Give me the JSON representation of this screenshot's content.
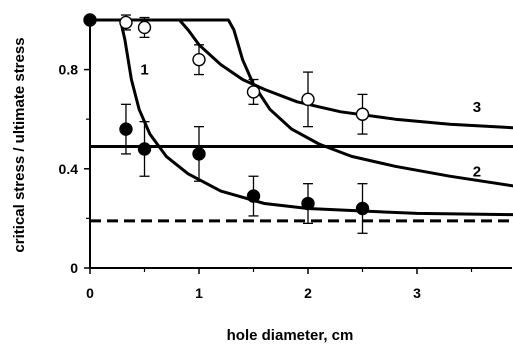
{
  "chart_data": {
    "type": "scatter",
    "xlabel": "hole diameter, cm",
    "ylabel": "critical stress / ultimate stress",
    "xlim": [
      0,
      3.9
    ],
    "ylim": [
      0,
      1.0
    ],
    "x_ticks": [
      "0",
      "1",
      "2",
      "3"
    ],
    "x_tick_values": [
      0,
      1,
      2,
      3
    ],
    "y_ticks": [
      "0",
      "0.4",
      "0.8"
    ],
    "y_tick_values": [
      0,
      0.4,
      0.8
    ],
    "grid": false,
    "series": [
      {
        "marker": "filled-circle",
        "points": [
          {
            "x": 0.0,
            "y": 1.0
          },
          {
            "x": 0.33,
            "y": 0.56,
            "err": 0.1
          },
          {
            "x": 0.5,
            "y": 0.48,
            "err": 0.11
          },
          {
            "x": 1.0,
            "y": 0.46,
            "err": 0.11
          },
          {
            "x": 1.5,
            "y": 0.29,
            "err": 0.08
          },
          {
            "x": 2.0,
            "y": 0.26,
            "err": 0.08
          },
          {
            "x": 2.5,
            "y": 0.24,
            "err": 0.1
          }
        ]
      },
      {
        "marker": "open-circle",
        "points": [
          {
            "x": 0.33,
            "y": 0.99,
            "err": 0.03
          },
          {
            "x": 0.5,
            "y": 0.97,
            "err": 0.04
          },
          {
            "x": 1.0,
            "y": 0.84,
            "err": 0.06
          },
          {
            "x": 1.5,
            "y": 0.71,
            "err": 0.05
          },
          {
            "x": 2.0,
            "y": 0.68,
            "err": 0.11
          },
          {
            "x": 2.5,
            "y": 0.62,
            "err": 0.08
          }
        ]
      }
    ],
    "curves": [
      {
        "label": "1",
        "style": "solid",
        "points": [
          [
            0,
            1.0
          ],
          [
            0.28,
            1.0
          ],
          [
            0.32,
            0.92
          ],
          [
            0.38,
            0.76
          ],
          [
            0.45,
            0.64
          ],
          [
            0.55,
            0.54
          ],
          [
            0.7,
            0.45
          ],
          [
            0.9,
            0.38
          ],
          [
            1.2,
            0.31
          ],
          [
            1.6,
            0.26
          ],
          [
            2.0,
            0.24
          ],
          [
            2.5,
            0.23
          ],
          [
            3.0,
            0.22
          ],
          [
            3.9,
            0.215
          ]
        ]
      },
      {
        "label": "2",
        "style": "solid",
        "points": [
          [
            0,
            1.0
          ],
          [
            1.27,
            1.0
          ],
          [
            1.32,
            0.96
          ],
          [
            1.4,
            0.84
          ],
          [
            1.5,
            0.74
          ],
          [
            1.65,
            0.64
          ],
          [
            1.85,
            0.56
          ],
          [
            2.1,
            0.5
          ],
          [
            2.4,
            0.45
          ],
          [
            2.8,
            0.41
          ],
          [
            3.3,
            0.37
          ],
          [
            3.9,
            0.33
          ]
        ]
      },
      {
        "label": "3",
        "style": "solid",
        "points": [
          [
            0,
            1.0
          ],
          [
            0.82,
            1.0
          ],
          [
            0.9,
            0.96
          ],
          [
            1.0,
            0.9
          ],
          [
            1.2,
            0.82
          ],
          [
            1.4,
            0.76
          ],
          [
            1.6,
            0.72
          ],
          [
            1.9,
            0.67
          ],
          [
            2.3,
            0.63
          ],
          [
            2.8,
            0.6
          ],
          [
            3.3,
            0.58
          ],
          [
            3.9,
            0.565
          ]
        ]
      },
      {
        "style": "solid",
        "points": [
          [
            0,
            0.49
          ],
          [
            3.9,
            0.49
          ]
        ]
      },
      {
        "style": "dashed",
        "points": [
          [
            0,
            0.19
          ],
          [
            3.9,
            0.19
          ]
        ]
      }
    ],
    "curve_labels": [
      {
        "text": "1",
        "x": 0.5,
        "y": 0.8
      },
      {
        "text": "2",
        "x": 3.55,
        "y": 0.39
      },
      {
        "text": "3",
        "x": 3.55,
        "y": 0.65
      }
    ]
  }
}
